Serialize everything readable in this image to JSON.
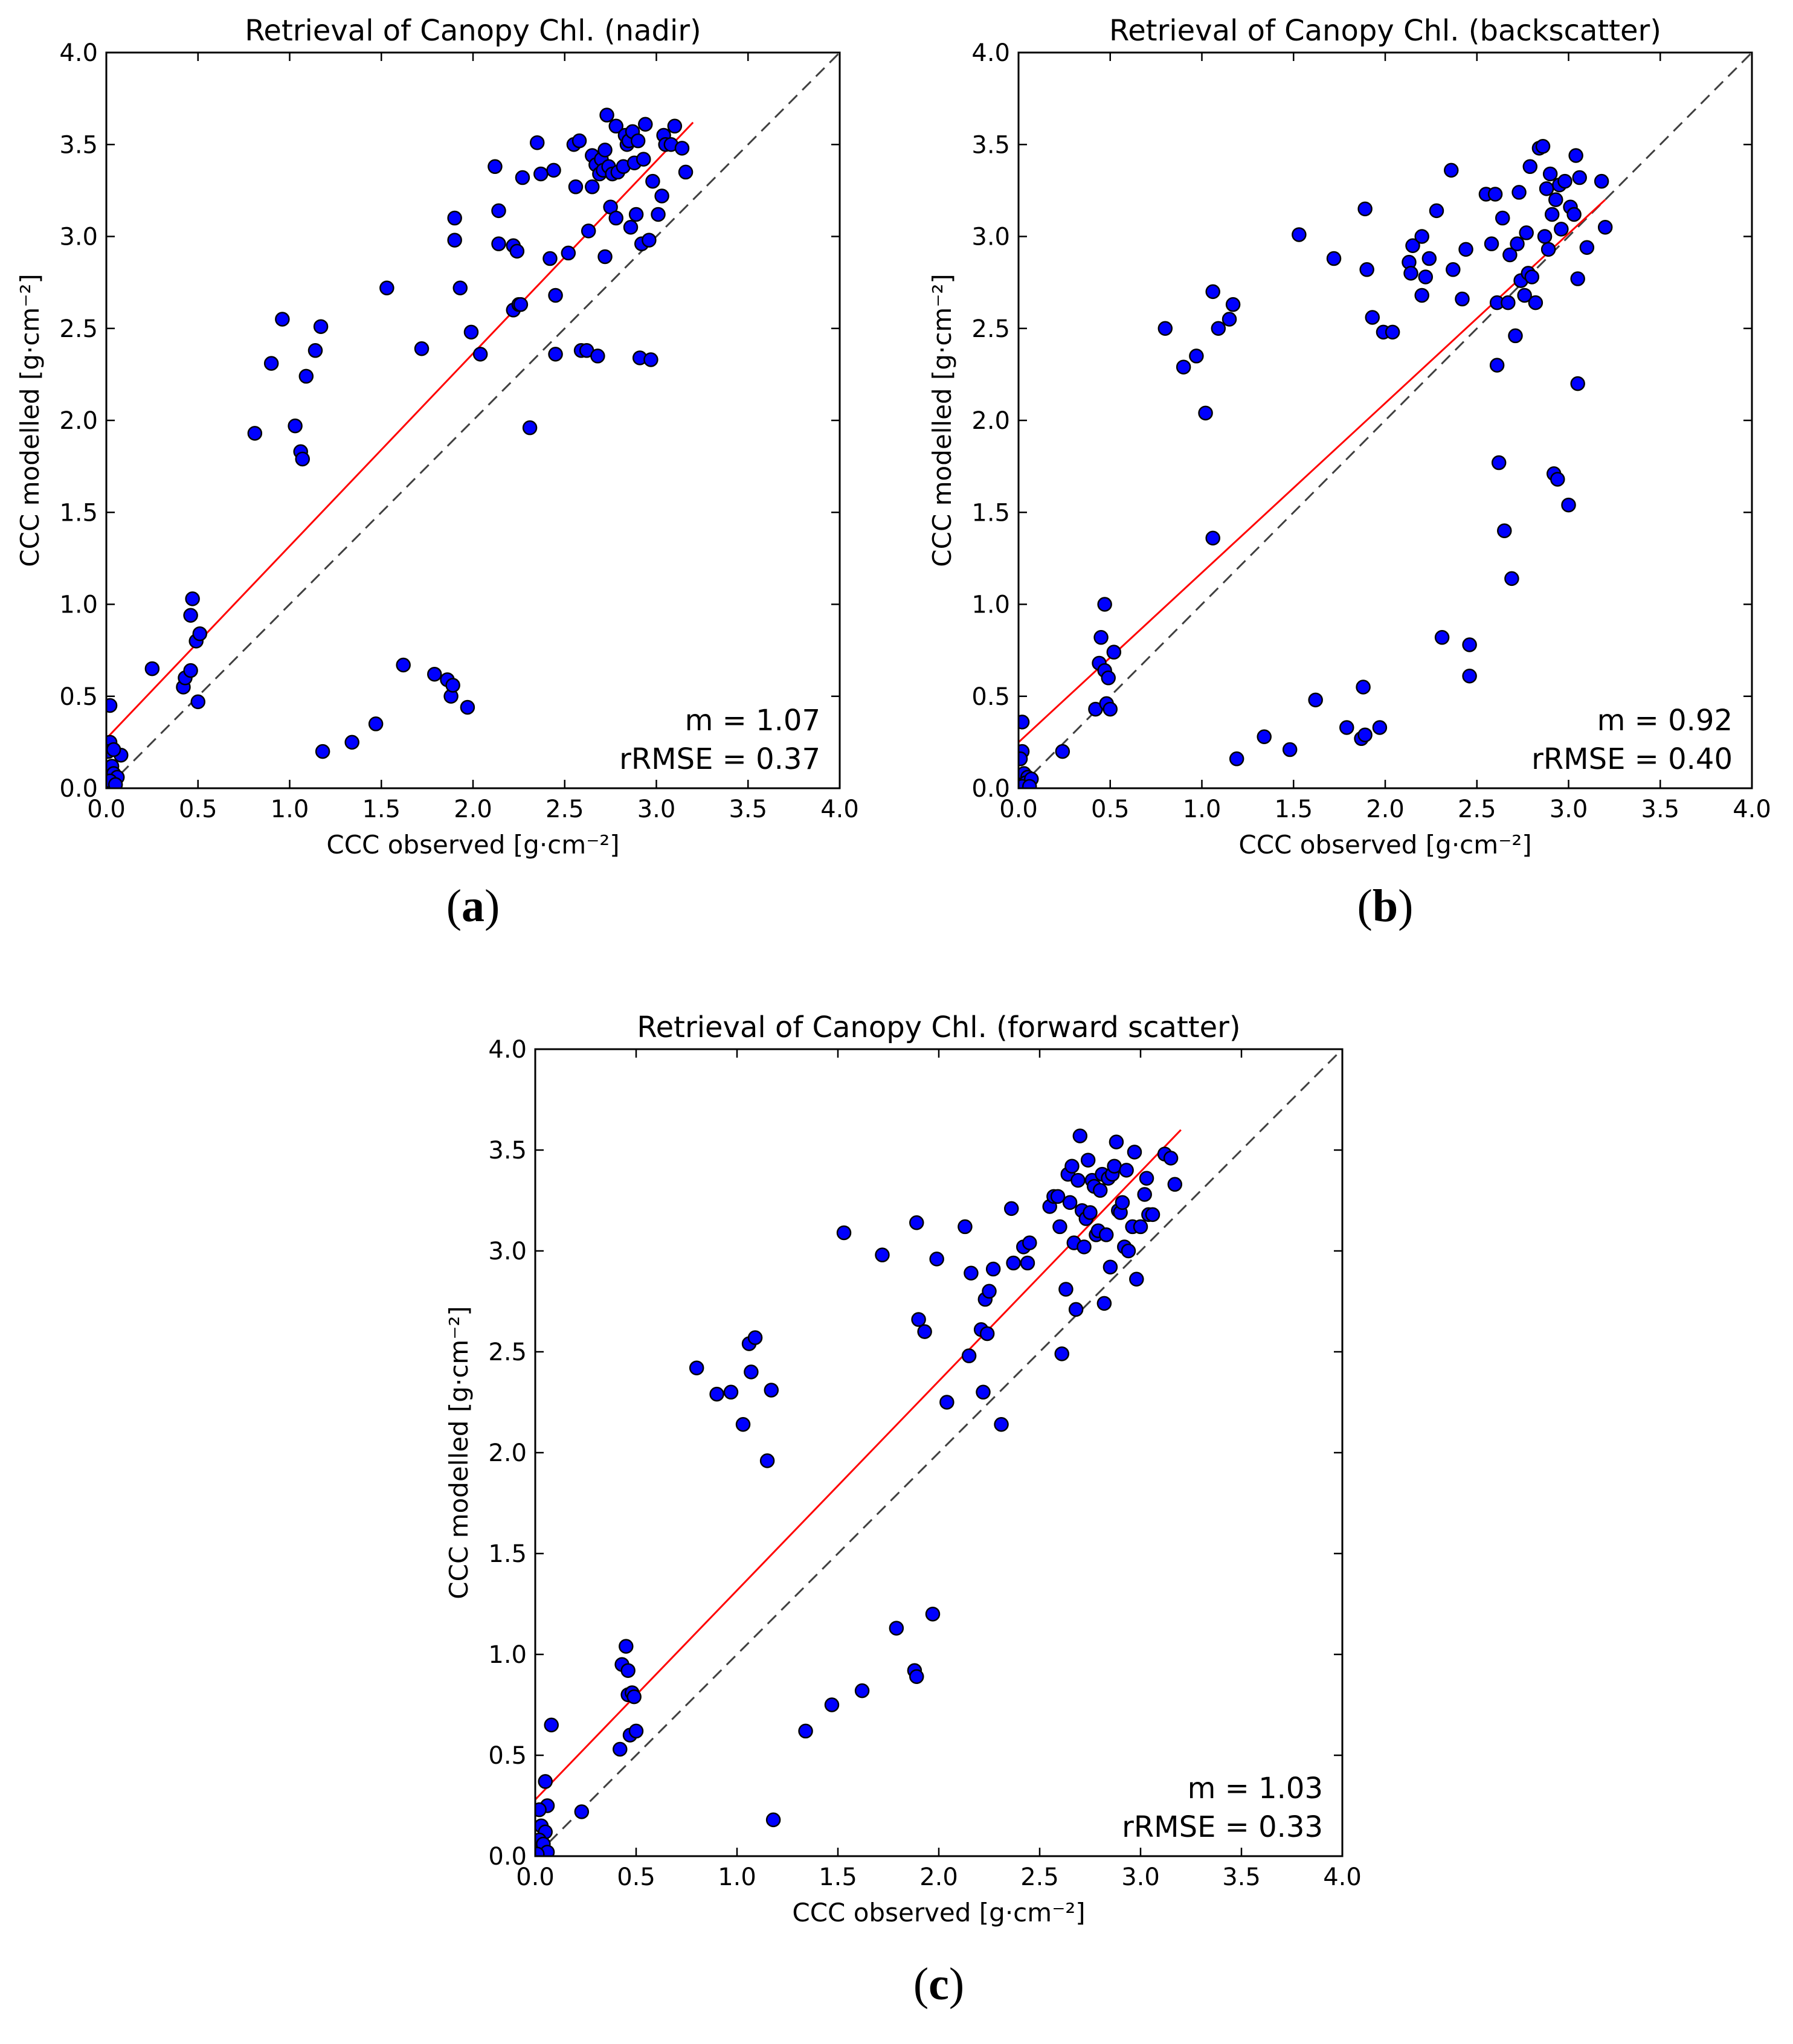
{
  "figure": {
    "colors": {
      "point_fill": "#0000ff",
      "point_stroke": "#000000",
      "fit_line": "#ff0000",
      "identity_line": "#404040",
      "axes": "#000000"
    }
  },
  "chart_data": [
    {
      "type": "scatter",
      "panel": "(a)",
      "panel_letter": "a",
      "title": "Retrieval of Canopy Chl. (nadir)",
      "xlabel": "CCC observed [g·cm⁻²]",
      "ylabel": "CCC modelled [g·cm⁻²]",
      "xlim": [
        0,
        4
      ],
      "ylim": [
        0,
        4
      ],
      "ticks": [
        0,
        0.5,
        1,
        1.5,
        2,
        2.5,
        3,
        3.5,
        4
      ],
      "tick_labels": [
        "0.0",
        "0.5",
        "1.0",
        "1.5",
        "2.0",
        "2.5",
        "3.0",
        "3.5",
        "4.0"
      ],
      "grid": false,
      "identity_line": true,
      "fit_line": {
        "x": [
          0,
          3.2
        ],
        "y": [
          0.27,
          3.62
        ]
      },
      "annotations": [
        "m = 1.07",
        "rRMSE = 0.37"
      ],
      "points": [
        [
          0.02,
          0.45
        ],
        [
          0.02,
          0.25
        ],
        [
          0.01,
          0.2
        ],
        [
          0.03,
          0.12
        ],
        [
          0.04,
          0.08
        ],
        [
          0.06,
          0.06
        ],
        [
          0.02,
          0.04
        ],
        [
          0.05,
          0.02
        ],
        [
          0.08,
          0.18
        ],
        [
          0.04,
          0.21
        ],
        [
          0.25,
          0.65
        ],
        [
          0.42,
          0.55
        ],
        [
          0.43,
          0.6
        ],
        [
          0.46,
          0.64
        ],
        [
          0.46,
          0.94
        ],
        [
          0.47,
          1.03
        ],
        [
          0.49,
          0.8
        ],
        [
          0.51,
          0.84
        ],
        [
          0.5,
          0.47
        ],
        [
          0.81,
          1.93
        ],
        [
          0.9,
          2.31
        ],
        [
          0.96,
          2.55
        ],
        [
          1.03,
          1.97
        ],
        [
          1.06,
          1.83
        ],
        [
          1.07,
          1.79
        ],
        [
          1.09,
          2.24
        ],
        [
          1.14,
          2.38
        ],
        [
          1.17,
          2.51
        ],
        [
          1.18,
          0.2
        ],
        [
          1.34,
          0.25
        ],
        [
          1.47,
          0.35
        ],
        [
          1.53,
          2.72
        ],
        [
          1.62,
          0.67
        ],
        [
          1.72,
          2.39
        ],
        [
          1.79,
          0.62
        ],
        [
          1.86,
          0.59
        ],
        [
          1.88,
          0.5
        ],
        [
          1.89,
          0.56
        ],
        [
          1.9,
          3.1
        ],
        [
          1.9,
          2.98
        ],
        [
          1.93,
          2.72
        ],
        [
          1.97,
          0.44
        ],
        [
          1.99,
          2.48
        ],
        [
          2.04,
          2.36
        ],
        [
          2.12,
          3.38
        ],
        [
          2.14,
          3.14
        ],
        [
          2.14,
          2.96
        ],
        [
          2.22,
          2.95
        ],
        [
          2.22,
          2.6
        ],
        [
          2.24,
          2.92
        ],
        [
          2.25,
          2.63
        ],
        [
          2.26,
          2.63
        ],
        [
          2.27,
          3.32
        ],
        [
          2.31,
          1.96
        ],
        [
          2.35,
          3.51
        ],
        [
          2.37,
          3.34
        ],
        [
          2.42,
          2.88
        ],
        [
          2.44,
          3.36
        ],
        [
          2.45,
          2.68
        ],
        [
          2.45,
          2.36
        ],
        [
          2.52,
          2.91
        ],
        [
          2.55,
          3.5
        ],
        [
          2.56,
          3.27
        ],
        [
          2.58,
          3.52
        ],
        [
          2.59,
          2.38
        ],
        [
          2.62,
          2.38
        ],
        [
          2.63,
          3.03
        ],
        [
          2.65,
          3.44
        ],
        [
          2.65,
          3.27
        ],
        [
          2.67,
          3.39
        ],
        [
          2.68,
          2.35
        ],
        [
          2.69,
          3.34
        ],
        [
          2.7,
          3.42
        ],
        [
          2.71,
          3.36
        ],
        [
          2.72,
          2.89
        ],
        [
          2.72,
          3.47
        ],
        [
          2.73,
          3.66
        ],
        [
          2.74,
          3.38
        ],
        [
          2.75,
          3.16
        ],
        [
          2.76,
          3.34
        ],
        [
          2.78,
          3.1
        ],
        [
          2.78,
          3.6
        ],
        [
          2.79,
          3.35
        ],
        [
          2.82,
          3.38
        ],
        [
          2.83,
          3.55
        ],
        [
          2.84,
          3.5
        ],
        [
          2.85,
          3.52
        ],
        [
          2.86,
          3.05
        ],
        [
          2.87,
          3.57
        ],
        [
          2.88,
          3.4
        ],
        [
          2.89,
          3.12
        ],
        [
          2.9,
          3.52
        ],
        [
          2.91,
          2.34
        ],
        [
          2.92,
          2.96
        ],
        [
          2.93,
          3.42
        ],
        [
          2.94,
          3.61
        ],
        [
          2.96,
          2.98
        ],
        [
          2.97,
          2.33
        ],
        [
          2.98,
          3.3
        ],
        [
          3.01,
          3.12
        ],
        [
          3.03,
          3.22
        ],
        [
          3.04,
          3.55
        ],
        [
          3.05,
          3.5
        ],
        [
          3.08,
          3.5
        ],
        [
          3.1,
          3.6
        ],
        [
          3.14,
          3.48
        ],
        [
          3.16,
          3.35
        ]
      ]
    },
    {
      "type": "scatter",
      "panel": "(b)",
      "panel_letter": "b",
      "title": "Retrieval of Canopy Chl. (backscatter)",
      "xlabel": "CCC observed [g·cm⁻²]",
      "ylabel": "CCC modelled [g·cm⁻²]",
      "xlim": [
        0,
        4
      ],
      "ylim": [
        0,
        4
      ],
      "ticks": [
        0,
        0.5,
        1,
        1.5,
        2,
        2.5,
        3,
        3.5,
        4
      ],
      "tick_labels": [
        "0.0",
        "0.5",
        "1.0",
        "1.5",
        "2.0",
        "2.5",
        "3.0",
        "3.5",
        "4.0"
      ],
      "grid": false,
      "identity_line": true,
      "fit_line": {
        "x": [
          0,
          3.2
        ],
        "y": [
          0.25,
          3.2
        ]
      },
      "annotations": [
        "m = 0.92",
        "rRMSE = 0.40"
      ],
      "points": [
        [
          0.02,
          0.36
        ],
        [
          0.02,
          0.2
        ],
        [
          0.01,
          0.16
        ],
        [
          0.03,
          0.08
        ],
        [
          0.05,
          0.06
        ],
        [
          0.04,
          0.03
        ],
        [
          0.07,
          0.05
        ],
        [
          0.02,
          0.01
        ],
        [
          0.06,
          0.01
        ],
        [
          0.24,
          0.2
        ],
        [
          0.42,
          0.43
        ],
        [
          0.44,
          0.68
        ],
        [
          0.45,
          0.82
        ],
        [
          0.47,
          1.0
        ],
        [
          0.47,
          0.64
        ],
        [
          0.48,
          0.46
        ],
        [
          0.49,
          0.6
        ],
        [
          0.5,
          0.43
        ],
        [
          0.52,
          0.74
        ],
        [
          0.8,
          2.5
        ],
        [
          0.9,
          2.29
        ],
        [
          0.97,
          2.35
        ],
        [
          1.02,
          2.04
        ],
        [
          1.06,
          2.7
        ],
        [
          1.06,
          1.36
        ],
        [
          1.09,
          2.5
        ],
        [
          1.15,
          2.55
        ],
        [
          1.17,
          2.63
        ],
        [
          1.19,
          0.16
        ],
        [
          1.34,
          0.28
        ],
        [
          1.48,
          0.21
        ],
        [
          1.53,
          3.01
        ],
        [
          1.62,
          0.48
        ],
        [
          1.72,
          2.88
        ],
        [
          1.79,
          0.33
        ],
        [
          1.87,
          0.27
        ],
        [
          1.88,
          0.55
        ],
        [
          1.89,
          0.29
        ],
        [
          1.89,
          3.15
        ],
        [
          1.9,
          2.82
        ],
        [
          1.93,
          2.56
        ],
        [
          1.97,
          0.33
        ],
        [
          1.99,
          2.48
        ],
        [
          2.04,
          2.48
        ],
        [
          2.13,
          2.86
        ],
        [
          2.14,
          2.8
        ],
        [
          2.15,
          2.95
        ],
        [
          2.2,
          3.0
        ],
        [
          2.2,
          2.68
        ],
        [
          2.22,
          2.78
        ],
        [
          2.24,
          2.88
        ],
        [
          2.28,
          3.14
        ],
        [
          2.31,
          0.82
        ],
        [
          2.36,
          3.36
        ],
        [
          2.37,
          2.82
        ],
        [
          2.42,
          2.66
        ],
        [
          2.44,
          2.93
        ],
        [
          2.46,
          0.78
        ],
        [
          2.46,
          0.61
        ],
        [
          2.55,
          3.23
        ],
        [
          2.58,
          2.96
        ],
        [
          2.6,
          3.23
        ],
        [
          2.61,
          2.64
        ],
        [
          2.61,
          2.3
        ],
        [
          2.62,
          1.77
        ],
        [
          2.64,
          3.1
        ],
        [
          2.65,
          1.4
        ],
        [
          2.67,
          2.64
        ],
        [
          2.68,
          2.9
        ],
        [
          2.69,
          1.14
        ],
        [
          2.71,
          2.46
        ],
        [
          2.72,
          2.96
        ],
        [
          2.73,
          3.24
        ],
        [
          2.74,
          2.76
        ],
        [
          2.76,
          2.68
        ],
        [
          2.77,
          3.02
        ],
        [
          2.78,
          2.8
        ],
        [
          2.79,
          3.38
        ],
        [
          2.8,
          2.78
        ],
        [
          2.82,
          2.64
        ],
        [
          2.84,
          3.48
        ],
        [
          2.86,
          3.49
        ],
        [
          2.87,
          3.0
        ],
        [
          2.88,
          3.26
        ],
        [
          2.89,
          2.93
        ],
        [
          2.9,
          3.34
        ],
        [
          2.91,
          3.12
        ],
        [
          2.92,
          1.71
        ],
        [
          2.93,
          3.2
        ],
        [
          2.94,
          1.68
        ],
        [
          2.95,
          3.28
        ],
        [
          2.96,
          3.04
        ],
        [
          2.98,
          3.3
        ],
        [
          3.0,
          1.54
        ],
        [
          3.01,
          3.16
        ],
        [
          3.03,
          3.12
        ],
        [
          3.04,
          3.44
        ],
        [
          3.05,
          2.2
        ],
        [
          3.05,
          2.77
        ],
        [
          3.06,
          3.32
        ],
        [
          3.1,
          2.94
        ],
        [
          3.18,
          3.3
        ],
        [
          3.2,
          3.05
        ]
      ]
    },
    {
      "type": "scatter",
      "panel": "(c)",
      "panel_letter": "c",
      "title": "Retrieval of Canopy Chl. (forward scatter)",
      "xlabel": "CCC observed [g·cm⁻²]",
      "ylabel": "CCC modelled [g·cm⁻²]",
      "xlim": [
        0,
        4
      ],
      "ylim": [
        0,
        4
      ],
      "ticks": [
        0,
        0.5,
        1,
        1.5,
        2,
        2.5,
        3,
        3.5,
        4
      ],
      "tick_labels": [
        "0.0",
        "0.5",
        "1.0",
        "1.5",
        "2.0",
        "2.5",
        "3.0",
        "3.5",
        "4.0"
      ],
      "grid": false,
      "identity_line": true,
      "fit_line": {
        "x": [
          0,
          3.2
        ],
        "y": [
          0.28,
          3.6
        ]
      },
      "annotations": [
        "m = 1.03",
        "rRMSE = 0.33"
      ],
      "points": [
        [
          0.05,
          0.37
        ],
        [
          0.06,
          0.25
        ],
        [
          0.02,
          0.23
        ],
        [
          0.03,
          0.15
        ],
        [
          0.05,
          0.12
        ],
        [
          0.02,
          0.08
        ],
        [
          0.04,
          0.06
        ],
        [
          0.06,
          0.02
        ],
        [
          0.01,
          0.01
        ],
        [
          0.08,
          0.65
        ],
        [
          0.23,
          0.22
        ],
        [
          0.42,
          0.53
        ],
        [
          0.43,
          0.95
        ],
        [
          0.45,
          1.04
        ],
        [
          0.46,
          0.92
        ],
        [
          0.46,
          0.8
        ],
        [
          0.47,
          0.6
        ],
        [
          0.48,
          0.81
        ],
        [
          0.49,
          0.79
        ],
        [
          0.5,
          0.62
        ],
        [
          0.8,
          2.42
        ],
        [
          0.9,
          2.29
        ],
        [
          0.97,
          2.3
        ],
        [
          1.03,
          2.14
        ],
        [
          1.06,
          2.54
        ],
        [
          1.07,
          2.4
        ],
        [
          1.09,
          2.57
        ],
        [
          1.15,
          1.96
        ],
        [
          1.17,
          2.31
        ],
        [
          1.18,
          0.18
        ],
        [
          1.34,
          0.62
        ],
        [
          1.47,
          0.75
        ],
        [
          1.53,
          3.09
        ],
        [
          1.62,
          0.82
        ],
        [
          1.72,
          2.98
        ],
        [
          1.79,
          1.13
        ],
        [
          1.88,
          0.92
        ],
        [
          1.89,
          0.89
        ],
        [
          1.89,
          3.14
        ],
        [
          1.9,
          2.66
        ],
        [
          1.93,
          2.6
        ],
        [
          1.97,
          1.2
        ],
        [
          1.99,
          2.96
        ],
        [
          2.04,
          2.25
        ],
        [
          2.13,
          3.12
        ],
        [
          2.15,
          2.48
        ],
        [
          2.16,
          2.89
        ],
        [
          2.21,
          2.61
        ],
        [
          2.22,
          2.3
        ],
        [
          2.23,
          2.76
        ],
        [
          2.24,
          2.59
        ],
        [
          2.25,
          2.8
        ],
        [
          2.27,
          2.91
        ],
        [
          2.31,
          2.14
        ],
        [
          2.36,
          3.21
        ],
        [
          2.37,
          2.94
        ],
        [
          2.42,
          3.02
        ],
        [
          2.44,
          2.94
        ],
        [
          2.45,
          3.04
        ],
        [
          2.55,
          3.22
        ],
        [
          2.57,
          3.27
        ],
        [
          2.59,
          3.27
        ],
        [
          2.6,
          3.12
        ],
        [
          2.61,
          2.49
        ],
        [
          2.63,
          2.81
        ],
        [
          2.64,
          3.38
        ],
        [
          2.65,
          3.24
        ],
        [
          2.66,
          3.42
        ],
        [
          2.67,
          3.04
        ],
        [
          2.68,
          2.71
        ],
        [
          2.69,
          3.35
        ],
        [
          2.7,
          3.57
        ],
        [
          2.71,
          3.2
        ],
        [
          2.72,
          3.02
        ],
        [
          2.73,
          3.16
        ],
        [
          2.74,
          3.45
        ],
        [
          2.75,
          3.19
        ],
        [
          2.76,
          3.35
        ],
        [
          2.77,
          3.32
        ],
        [
          2.78,
          3.08
        ],
        [
          2.79,
          3.1
        ],
        [
          2.8,
          3.3
        ],
        [
          2.81,
          3.38
        ],
        [
          2.82,
          2.74
        ],
        [
          2.83,
          3.08
        ],
        [
          2.84,
          3.36
        ],
        [
          2.85,
          2.92
        ],
        [
          2.86,
          3.38
        ],
        [
          2.87,
          3.42
        ],
        [
          2.88,
          3.54
        ],
        [
          2.89,
          3.2
        ],
        [
          2.9,
          3.19
        ],
        [
          2.91,
          3.24
        ],
        [
          2.92,
          3.02
        ],
        [
          2.93,
          3.4
        ],
        [
          2.94,
          3.0
        ],
        [
          2.96,
          3.12
        ],
        [
          2.97,
          3.49
        ],
        [
          2.98,
          2.86
        ],
        [
          3.0,
          3.12
        ],
        [
          3.02,
          3.28
        ],
        [
          3.03,
          3.36
        ],
        [
          3.04,
          3.18
        ],
        [
          3.06,
          3.18
        ],
        [
          3.12,
          3.48
        ],
        [
          3.15,
          3.46
        ],
        [
          3.17,
          3.33
        ]
      ]
    }
  ]
}
